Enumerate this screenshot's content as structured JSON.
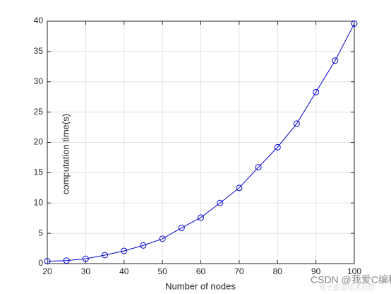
{
  "chart_data": {
    "type": "line",
    "xlabel": "Number of nodes",
    "ylabel": "computation time(s)",
    "x": [
      20,
      25,
      30,
      35,
      40,
      45,
      50,
      55,
      60,
      65,
      70,
      75,
      80,
      85,
      90,
      95,
      100
    ],
    "series": [
      {
        "color": "#0000cd",
        "values": [
          0.4,
          0.5,
          0.8,
          1.4,
          2.1,
          3.0,
          4.1,
          5.9,
          7.6,
          10.0,
          12.5,
          15.9,
          19.2,
          23.1,
          28.3,
          33.5,
          39.6
        ]
      }
    ],
    "xlim": [
      20,
      100
    ],
    "xticks": [
      20,
      30,
      40,
      50,
      60,
      70,
      80,
      90,
      100
    ],
    "ylim": [
      0,
      40
    ],
    "yticks": [
      0,
      5,
      10,
      15,
      20,
      25,
      30,
      35,
      40
    ],
    "grid": true,
    "watermarks": [
      "CSDN @我爱C编程",
      "稀土掘金技术社区"
    ]
  }
}
